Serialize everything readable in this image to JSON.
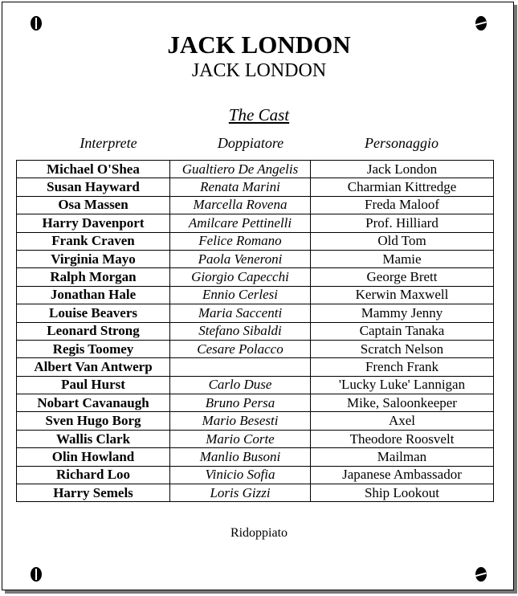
{
  "title": "JACK LONDON",
  "subtitle": "JACK LONDON",
  "section_title": "The Cast",
  "columns": [
    "Interprete",
    "Doppiatore",
    "Personaggio"
  ],
  "rows": [
    [
      "Michael O'Shea",
      "Gualtiero De Angelis",
      "Jack London"
    ],
    [
      "Susan  Hayward",
      "Renata Marini",
      "Charmian Kittredge"
    ],
    [
      "Osa Massen",
      "Marcella Rovena",
      "Freda Maloof"
    ],
    [
      "Harry Davenport",
      "Amilcare Pettinelli",
      "Prof. Hilliard"
    ],
    [
      "Frank Craven",
      "Felice Romano",
      "Old Tom"
    ],
    [
      "Virginia Mayo",
      "Paola Veneroni",
      "Mamie"
    ],
    [
      "Ralph Morgan",
      "Giorgio Capecchi",
      "George Brett"
    ],
    [
      "Jonathan Hale",
      "Ennio Cerlesi",
      "Kerwin Maxwell"
    ],
    [
      "Louise Beavers",
      "Maria Saccenti",
      "Mammy Jenny"
    ],
    [
      "Leonard Strong",
      "Stefano Sibaldi",
      "Captain Tanaka"
    ],
    [
      "Regis Toomey",
      "Cesare Polacco",
      "Scratch Nelson"
    ],
    [
      "Albert Van Antwerp",
      "",
      "French Frank"
    ],
    [
      "Paul Hurst",
      "Carlo Duse",
      "'Lucky Luke' Lannigan"
    ],
    [
      "Nobart Cavanaugh",
      "Bruno Persa",
      "Mike, Saloonkeeper"
    ],
    [
      "Sven Hugo Borg",
      "Mario Besesti",
      "Axel"
    ],
    [
      "Wallis Clark",
      "Mario Corte",
      "Theodore Roosvelt"
    ],
    [
      "Olin Howland",
      "Manlio Busoni",
      "Mailman"
    ],
    [
      "Richard Loo",
      "Vinicio Sofia",
      "Japanese Ambassador"
    ],
    [
      "Harry Semels",
      "Loris Gizzi",
      "Ship Lookout"
    ]
  ],
  "footer": "Ridoppiato",
  "icons": [
    "screw-icon"
  ]
}
